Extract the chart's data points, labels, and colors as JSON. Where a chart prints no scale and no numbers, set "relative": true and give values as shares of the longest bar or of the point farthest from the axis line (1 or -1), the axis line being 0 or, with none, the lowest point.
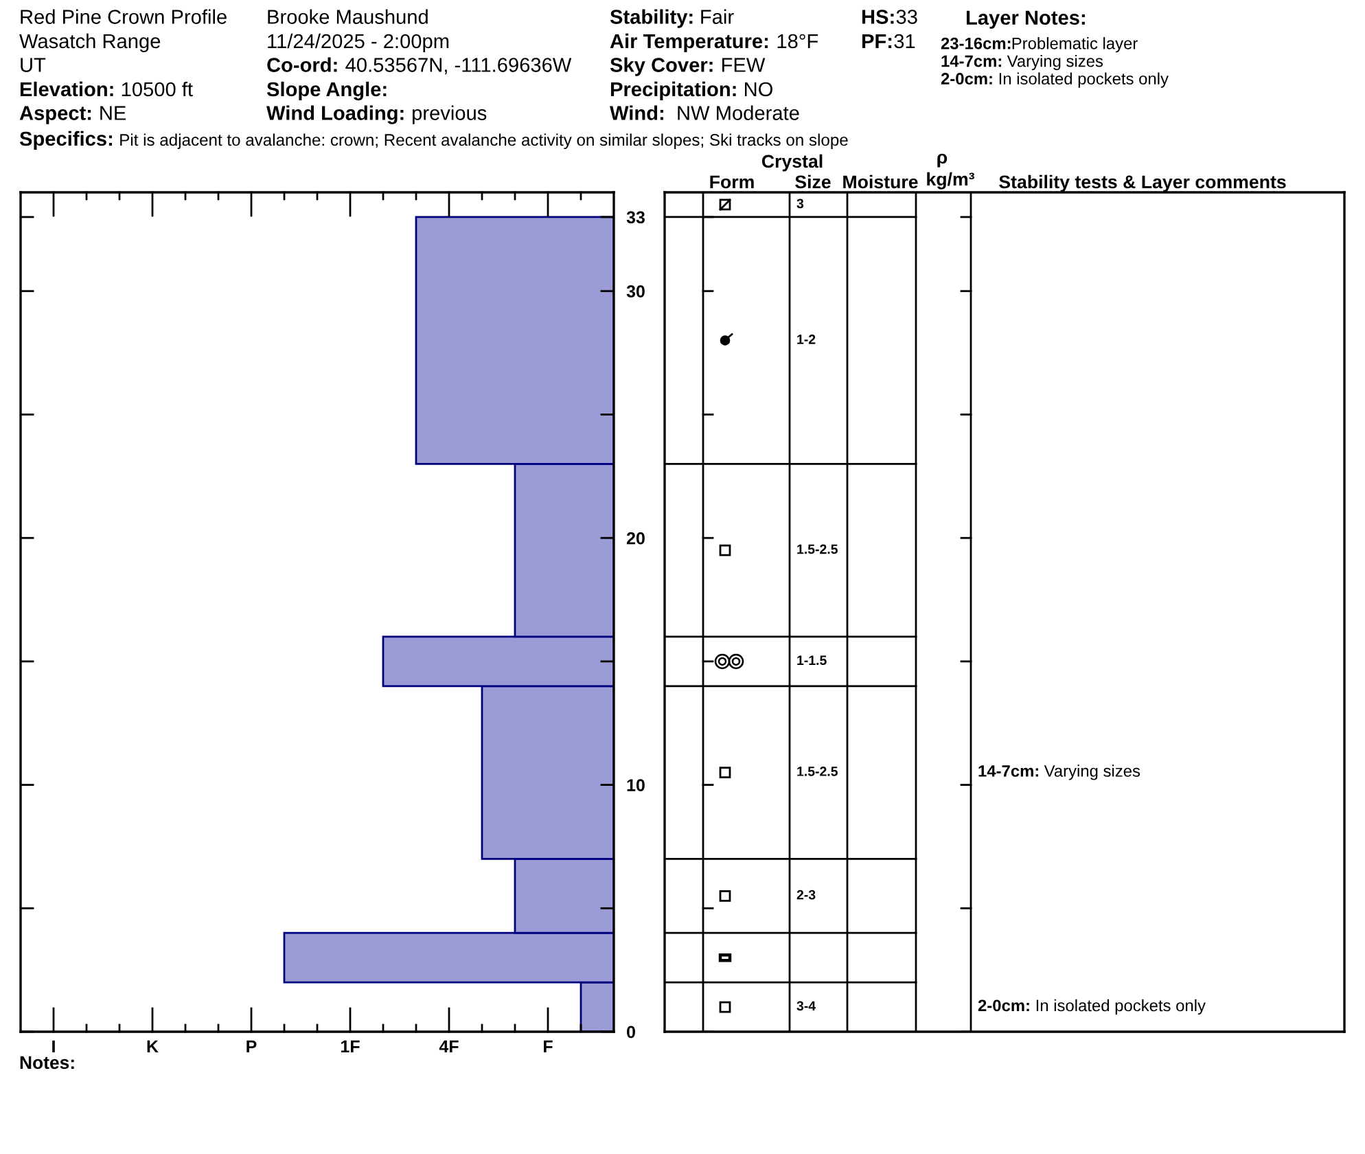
{
  "chart_data": [
    {
      "type": "other",
      "title": "Red Pine Crown Profile",
      "annotations": [
        "Wasatch Range",
        "UT",
        "Elevation: 10500 ft",
        "Aspect: NE",
        "Brooke Maushund",
        "11/24/2025 - 2:00pm",
        "Co-ord: 40.53567N, -111.69636W",
        "Slope Angle:",
        "Wind Loading: previous",
        "Stability: Fair",
        "Air Temperature: 18°F",
        "Sky Cover: FEW",
        "Precipitation: NO",
        "Wind:  NW Moderate",
        "HS:33",
        "PF:31",
        "Layer Notes:",
        "23-16cm:Problematic layer",
        "14-7cm: Varying sizes",
        "2-0cm: In isolated pockets only",
        "Specifics: Pit is adjacent to avalanche: crown; Recent avalanche activity on similar slopes; Ski tracks on slope",
        "Notes:"
      ]
    },
    {
      "type": "bar",
      "orientation": "horizontal",
      "relative": true,
      "x": [
        1,
        3,
        5.5,
        10.5,
        15,
        19.5,
        28
      ],
      "values": [
        0.1,
        1,
        0.3,
        0.4,
        0.7,
        0.3,
        0.6
      ],
      "color": "#9b9bd5",
      "ylim": [
        0,
        34
      ],
      "yticks": [
        0,
        {
          "value": 5,
          "label": null
        },
        10,
        {
          "value": 15,
          "label": null
        },
        20,
        {
          "value": 25,
          "label": null
        },
        30,
        33
      ],
      "annotations": [
        "I",
        "K",
        "P",
        "1F",
        "4F",
        "F"
      ]
    },
    {
      "type": "other",
      "categories": [
        null,
        "Form",
        "Size",
        "Moisture",
        "kg/m³",
        "Stability tests & Layer comments"
      ],
      "annotations": [
        "Crystal",
        "ρ"
      ],
      "cell_labels": [
        [
          null,
          null,
          "3",
          null,
          null,
          null
        ],
        [
          null,
          null,
          "1-2",
          null,
          null,
          null
        ],
        [
          null,
          null,
          "1.5-2.5",
          null,
          null,
          null
        ],
        [
          null,
          null,
          "1-1.5",
          null,
          null,
          null
        ],
        [
          null,
          null,
          "1.5-2.5",
          null,
          null,
          "14-7cm: Varying sizes"
        ],
        [
          null,
          null,
          "2-3",
          null,
          null,
          null
        ],
        [
          null,
          null,
          null,
          null,
          null,
          null
        ],
        [
          null,
          null,
          "3-4",
          null,
          null,
          "2-0cm: In isolated pockets only"
        ]
      ]
    }
  ]
}
